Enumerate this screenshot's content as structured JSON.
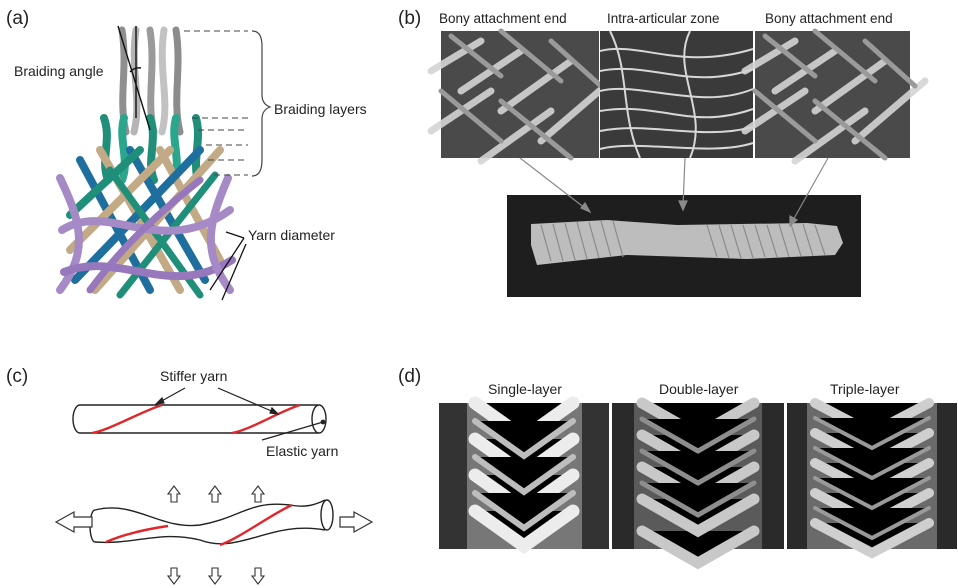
{
  "panel_a": {
    "letter": "(a)",
    "braiding_angle": "Braiding angle",
    "braiding_layers": "Braiding layers",
    "yarn_diameter": "Yarn diameter"
  },
  "panel_b": {
    "letter": "(b)",
    "labels": [
      "Bony attachment end",
      "Intra-articular zone",
      "Bony attachment end"
    ]
  },
  "panel_c": {
    "letter": "(c)",
    "stiffer_yarn": "Stiffer yarn",
    "elastic_yarn": "Elastic yarn"
  },
  "panel_d": {
    "letter": "(d)",
    "labels": [
      "Single-layer",
      "Double-layer",
      "Triple-layer"
    ]
  },
  "colors": {
    "yarn_grey": "#9c9c9c",
    "yarn_teal": "#1f8f7a",
    "yarn_blue": "#1f6f9e",
    "yarn_tan": "#c2aa86",
    "yarn_purple": "#a58ac6",
    "stiff_red": "#e0262b",
    "photo_dark": "#1e1e1e"
  }
}
